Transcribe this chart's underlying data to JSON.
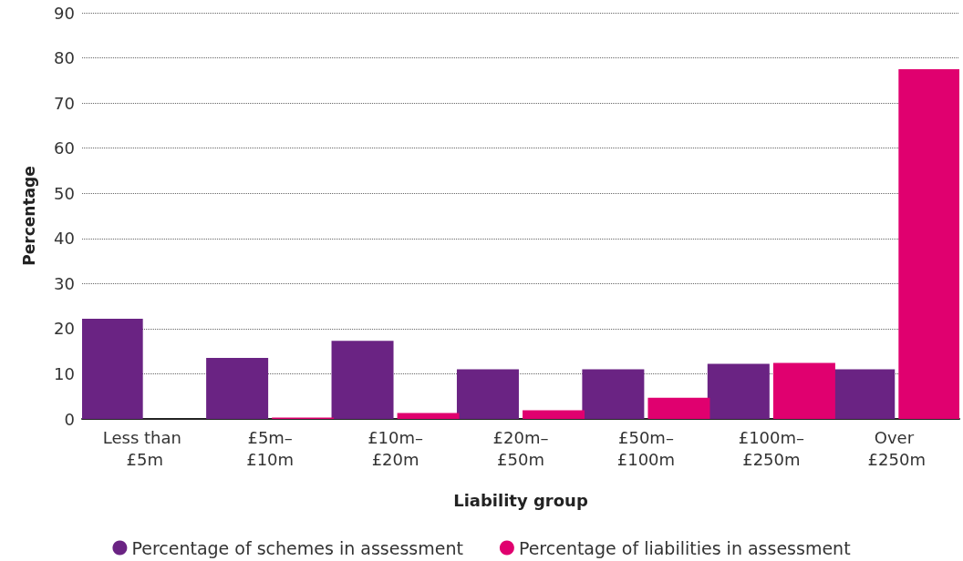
{
  "chart_data": {
    "type": "bar",
    "xlabel": "Liability group",
    "ylabel": "Percentage",
    "categories": [
      "Less than £5m",
      "£5m–£10m",
      "£10m–£20m",
      "£20m–£50m",
      "£50m–£100m",
      "£100m–£250m",
      "Over £250m"
    ],
    "series": [
      {
        "name": "Percentage of schemes in assessment",
        "color": "#6a2383",
        "values": [
          22.2,
          13.5,
          17.3,
          11.0,
          11.0,
          12.2,
          11.0
        ]
      },
      {
        "name": "Percentage of liabilities in assessment",
        "color": "#e0006f",
        "values": [
          0,
          0.3,
          1.3,
          1.9,
          4.7,
          12.4,
          77.5
        ]
      }
    ],
    "ylim": [
      0,
      90
    ],
    "yticks": [
      0,
      10,
      20,
      30,
      40,
      50,
      60,
      70,
      80,
      90
    ],
    "grid": "y",
    "legend": "bottom"
  }
}
